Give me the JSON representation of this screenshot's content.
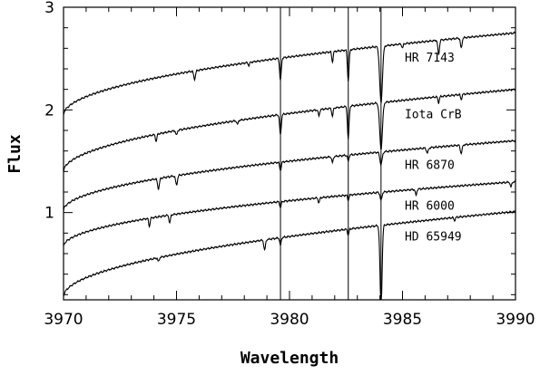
{
  "chart_data": {
    "type": "line",
    "xlabel": "Wavelength",
    "ylabel": "Flux",
    "xlim": [
      3970,
      3990
    ],
    "ylim": [
      0.15,
      3.0
    ],
    "x_ticks": [
      3970,
      3975,
      3980,
      3985,
      3990
    ],
    "y_ticks": [
      1,
      2,
      3
    ],
    "grid": false,
    "legend": "none",
    "vertical_lines": [
      3979.6,
      3982.6,
      3984.05
    ],
    "series": [
      {
        "name": "HR 7143",
        "label_x": 3987.5,
        "continuum": {
          "a": 1.95,
          "b": 2.75
        },
        "lines": [
          {
            "x": 3975.8,
            "d": 0.08,
            "w": 0.04
          },
          {
            "x": 3978.2,
            "d": 0.03,
            "w": 0.03
          },
          {
            "x": 3979.6,
            "d": 0.22,
            "w": 0.035
          },
          {
            "x": 3981.9,
            "d": 0.1,
            "w": 0.03
          },
          {
            "x": 3982.6,
            "d": 0.3,
            "w": 0.035
          },
          {
            "x": 3984.05,
            "d": 0.55,
            "w": 0.06
          },
          {
            "x": 3985.0,
            "d": 0.04,
            "w": 0.03
          },
          {
            "x": 3986.6,
            "d": 0.14,
            "w": 0.035
          },
          {
            "x": 3987.6,
            "d": 0.1,
            "w": 0.035
          }
        ]
      },
      {
        "name": "Iota CrB",
        "label_x": 3987.5,
        "continuum": {
          "a": 1.4,
          "b": 2.2
        },
        "lines": [
          {
            "x": 3974.1,
            "d": 0.07,
            "w": 0.03
          },
          {
            "x": 3975.0,
            "d": 0.05,
            "w": 0.03
          },
          {
            "x": 3977.7,
            "d": 0.04,
            "w": 0.03
          },
          {
            "x": 3979.6,
            "d": 0.2,
            "w": 0.035
          },
          {
            "x": 3981.3,
            "d": 0.06,
            "w": 0.03
          },
          {
            "x": 3981.9,
            "d": 0.08,
            "w": 0.03
          },
          {
            "x": 3982.6,
            "d": 0.32,
            "w": 0.035
          },
          {
            "x": 3984.05,
            "d": 0.45,
            "w": 0.06
          },
          {
            "x": 3986.6,
            "d": 0.06,
            "w": 0.03
          },
          {
            "x": 3987.6,
            "d": 0.05,
            "w": 0.03
          }
        ]
      },
      {
        "name": "HR 6870",
        "label_x": 3987.5,
        "continuum": {
          "a": 1.02,
          "b": 1.7
        },
        "lines": [
          {
            "x": 3974.2,
            "d": 0.1,
            "w": 0.04
          },
          {
            "x": 3975.0,
            "d": 0.09,
            "w": 0.04
          },
          {
            "x": 3979.6,
            "d": 0.08,
            "w": 0.035
          },
          {
            "x": 3981.9,
            "d": 0.06,
            "w": 0.03
          },
          {
            "x": 3982.6,
            "d": 0.06,
            "w": 0.03
          },
          {
            "x": 3984.05,
            "d": 0.12,
            "w": 0.05
          },
          {
            "x": 3986.1,
            "d": 0.05,
            "w": 0.04
          },
          {
            "x": 3987.6,
            "d": 0.08,
            "w": 0.04
          }
        ]
      },
      {
        "name": "HR 6000",
        "label_x": 3987.5,
        "continuum": {
          "a": 0.67,
          "b": 1.3
        },
        "lines": [
          {
            "x": 3973.8,
            "d": 0.08,
            "w": 0.03
          },
          {
            "x": 3974.7,
            "d": 0.08,
            "w": 0.03
          },
          {
            "x": 3979.6,
            "d": 0.06,
            "w": 0.03
          },
          {
            "x": 3981.3,
            "d": 0.05,
            "w": 0.03
          },
          {
            "x": 3982.6,
            "d": 0.05,
            "w": 0.03
          },
          {
            "x": 3984.05,
            "d": 0.08,
            "w": 0.04
          },
          {
            "x": 3985.6,
            "d": 0.06,
            "w": 0.03
          },
          {
            "x": 3989.8,
            "d": 0.05,
            "w": 0.03
          }
        ]
      },
      {
        "name": "HD 65949",
        "label_x": 3987.5,
        "continuum": {
          "a": 0.18,
          "b": 1.01
        },
        "lines": [
          {
            "x": 3974.2,
            "d": 0.04,
            "w": 0.03
          },
          {
            "x": 3978.9,
            "d": 0.1,
            "w": 0.035
          },
          {
            "x": 3979.6,
            "d": 0.08,
            "w": 0.03
          },
          {
            "x": 3982.6,
            "d": 0.06,
            "w": 0.03
          },
          {
            "x": 3984.05,
            "d": 0.8,
            "w": 0.045
          },
          {
            "x": 3987.3,
            "d": 0.03,
            "w": 0.03
          }
        ]
      }
    ]
  }
}
